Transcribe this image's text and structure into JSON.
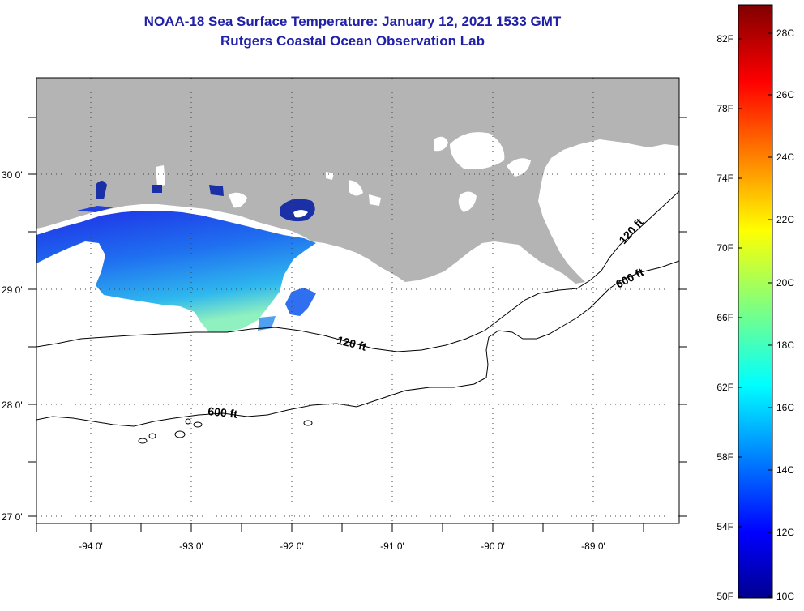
{
  "title": {
    "line1": "NOAA-18 Sea Surface Temperature:  January 12, 2021 1533 GMT",
    "line2": "Rutgers Coastal Ocean Observation Lab"
  },
  "map": {
    "lon_ticks": [
      "-94 0'",
      "-93 0'",
      "-92 0'",
      "-91 0'",
      "-90 0'",
      "-89 0'"
    ],
    "lat_ticks": [
      "30 0'",
      "29 0'",
      "28 0'",
      "27 0'"
    ],
    "lat_range": [
      26.95,
      30.85
    ],
    "lon_range": [
      -94.55,
      -88.15
    ],
    "grid": true,
    "land_color": "#b4b4b4",
    "contour_labels": {
      "c120_east": "120 ft",
      "c600_east": "600 ft",
      "c120_mid": "120 ft",
      "c600_west": "600 ft"
    }
  },
  "colorbar": {
    "f_labels": [
      "82F",
      "78F",
      "74F",
      "70F",
      "66F",
      "62F",
      "58F",
      "54F",
      "50F"
    ],
    "c_labels": [
      "28C",
      "26C",
      "24C",
      "22C",
      "20C",
      "18C",
      "16C",
      "14C",
      "12C",
      "10C"
    ],
    "range_c": [
      10,
      29
    ]
  }
}
